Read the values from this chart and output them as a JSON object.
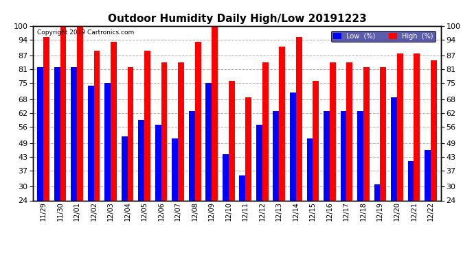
{
  "title": "Outdoor Humidity Daily High/Low 20191223",
  "copyright": "Copyright 2019 Cartronics.com",
  "labels": [
    "11/29",
    "11/30",
    "12/01",
    "12/02",
    "12/03",
    "12/04",
    "12/05",
    "12/06",
    "12/07",
    "12/08",
    "12/09",
    "12/10",
    "12/11",
    "12/12",
    "12/13",
    "12/14",
    "12/15",
    "12/16",
    "12/17",
    "12/18",
    "12/19",
    "12/20",
    "12/21",
    "12/22"
  ],
  "high_values": [
    95,
    100,
    100,
    89,
    93,
    82,
    89,
    84,
    84,
    93,
    100,
    76,
    69,
    84,
    91,
    95,
    76,
    84,
    84,
    82,
    82,
    88,
    88,
    85
  ],
  "low_values": [
    82,
    82,
    82,
    74,
    75,
    52,
    59,
    57,
    51,
    63,
    75,
    44,
    35,
    57,
    63,
    71,
    51,
    63,
    63,
    63,
    31,
    69,
    41,
    46
  ],
  "high_color": "#ff0000",
  "low_color": "#0000ff",
  "bg_color": "#ffffff",
  "grid_color": "#aaaaaa",
  "ylim_min": 24,
  "ylim_max": 100,
  "yticks": [
    24,
    30,
    37,
    43,
    49,
    56,
    62,
    68,
    75,
    81,
    87,
    94,
    100
  ],
  "bar_width": 0.36,
  "legend_low_label": "Low  (%)",
  "legend_high_label": "High  (%)"
}
